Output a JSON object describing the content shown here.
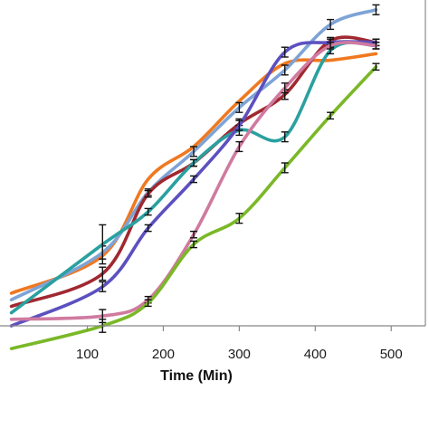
{
  "chart_data": {
    "type": "line",
    "xlabel": "Time (Min)",
    "ylabel": "",
    "xlim": [
      -15,
      545
    ],
    "ylim": [
      0,
      100
    ],
    "x_ticks": [
      {
        "value": 100,
        "label": "100"
      },
      {
        "value": 200,
        "label": "200"
      },
      {
        "value": 300,
        "label": "300"
      },
      {
        "value": 400,
        "label": "400"
      },
      {
        "value": 500,
        "label": "500"
      }
    ],
    "grid": false,
    "legend": "none",
    "x": [
      0,
      120,
      180,
      240,
      300,
      360,
      420,
      480
    ],
    "series": [
      {
        "color": "#f07820",
        "values": [
          10,
          21.5,
          45,
          55,
          69,
          80.5,
          81.5,
          83.5
        ],
        "errors": [
          0,
          0,
          0,
          0,
          0,
          0,
          0,
          0
        ]
      },
      {
        "color": "#7ea3d6",
        "values": [
          8,
          22.5,
          41,
          53.5,
          67,
          78.5,
          92.5,
          97
        ],
        "errors": [
          0,
          2,
          1,
          1.5,
          1.5,
          1.5,
          1.5,
          1.5
        ]
      },
      {
        "color": "#a02830",
        "values": [
          6,
          16,
          40.5,
          50,
          62,
          71,
          87.5,
          87
        ],
        "errors": [
          0,
          2,
          1,
          1,
          1.5,
          1.5,
          1,
          1
        ]
      },
      {
        "color": "#2aa0a0",
        "values": [
          4,
          25,
          35,
          50,
          60,
          58,
          84.5,
          86
        ],
        "errors": [
          0,
          6,
          1,
          1,
          1.5,
          1.5,
          1,
          1
        ]
      },
      {
        "color": "#5c50c0",
        "values": [
          0,
          12,
          30,
          45,
          61.5,
          84,
          87,
          87
        ],
        "errors": [
          0,
          1.5,
          1,
          1,
          1.5,
          1.5,
          1,
          1
        ]
      },
      {
        "color": "#d07aa0",
        "values": [
          2,
          3,
          8,
          28,
          55,
          73,
          86,
          86
        ],
        "errors": [
          0,
          2,
          1,
          1,
          1.5,
          1.5,
          1,
          1
        ]
      },
      {
        "color": "#7ab828",
        "values": [
          -7,
          0,
          7,
          25,
          33,
          48.5,
          64.5,
          79.5
        ],
        "errors": [
          0,
          2,
          1,
          1,
          1.5,
          1.5,
          1,
          1
        ]
      }
    ]
  }
}
